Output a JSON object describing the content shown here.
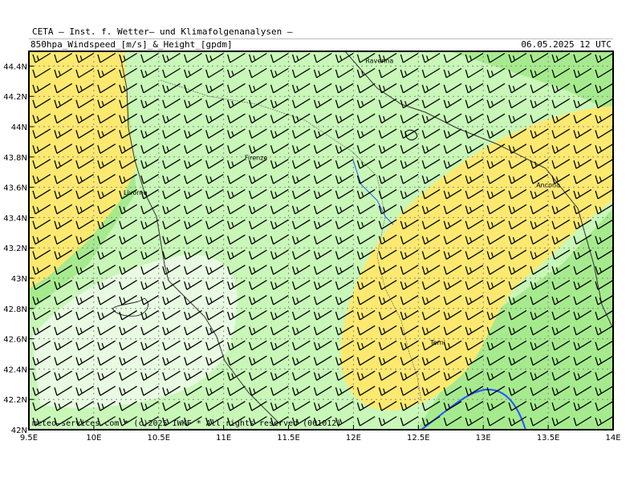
{
  "header": {
    "institute": "CETA — Inst. f. Wetter— und Klimafolgenanalysen —",
    "product": "850hpa_Windspeed_[m/s]_&_Height_[gpdm]",
    "valid": "06.05.2025 12 UTC"
  },
  "map": {
    "lon_range": [
      9.5,
      14.0
    ],
    "lat_range": [
      42.0,
      44.5
    ],
    "x_ticks": [
      "9.5E",
      "10E",
      "10.5E",
      "11E",
      "11.5E",
      "12E",
      "12.5E",
      "13E",
      "13.5E",
      "14E"
    ],
    "y_ticks": [
      "42N",
      "42.2N",
      "42.4N",
      "42.6N",
      "42.8N",
      "43N",
      "43.2N",
      "43.4N",
      "43.6N",
      "43.8N",
      "44N",
      "44.2N",
      "44.4N"
    ],
    "cities": [
      {
        "name": "Ravenna",
        "lon": 12.2,
        "lat": 44.42
      },
      {
        "name": "Firenze",
        "lon": 11.25,
        "lat": 43.78
      },
      {
        "name": "Livorno",
        "lon": 10.32,
        "lat": 43.55
      },
      {
        "name": "Ancona",
        "lon": 13.5,
        "lat": 43.6
      },
      {
        "name": "Terni",
        "lon": 12.65,
        "lat": 42.56
      }
    ],
    "colors": {
      "land_green": "#c8f7b8",
      "mid_green": "#a6ea8e",
      "pale_green": "#e8fbe2",
      "yellow_band": "#fde970",
      "barb": "#000000",
      "river": "#2255ff",
      "border": "#555555"
    },
    "wind_barbs": {
      "direction": "westerly / west-southwest",
      "columns": 27,
      "rows": 25
    },
    "credit": "meteo—services.com * (c)2025 IWKF * All rights reserved (001012)"
  }
}
